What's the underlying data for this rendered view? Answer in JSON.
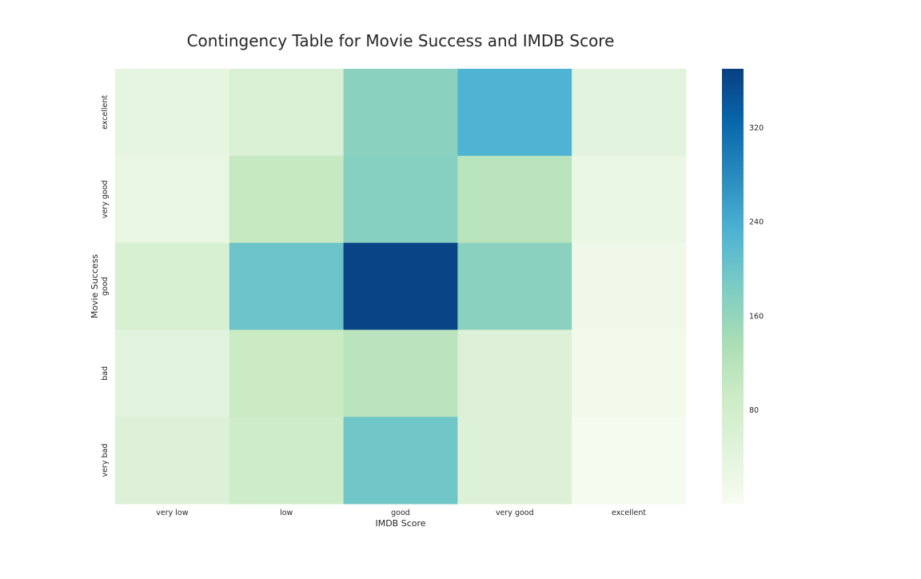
{
  "chart_data": {
    "type": "heatmap",
    "title": "Contingency Table for Movie Success and IMDB Score",
    "xlabel": "IMDB Score",
    "ylabel": "Movie Success",
    "x_categories": [
      "very low",
      "low",
      "good",
      "very good",
      "excellent"
    ],
    "y_categories": [
      "excellent",
      "very good",
      "good",
      "bad",
      "very bad"
    ],
    "values": [
      [
        35,
        62,
        170,
        230,
        45
      ],
      [
        30,
        100,
        175,
        118,
        25
      ],
      [
        65,
        200,
        365,
        170,
        15
      ],
      [
        45,
        95,
        115,
        55,
        8
      ],
      [
        55,
        85,
        195,
        55,
        5
      ]
    ],
    "colorbar": {
      "range": [
        0,
        370
      ],
      "ticks": [
        80,
        160,
        240,
        320
      ],
      "colormap": "GnBu"
    }
  }
}
